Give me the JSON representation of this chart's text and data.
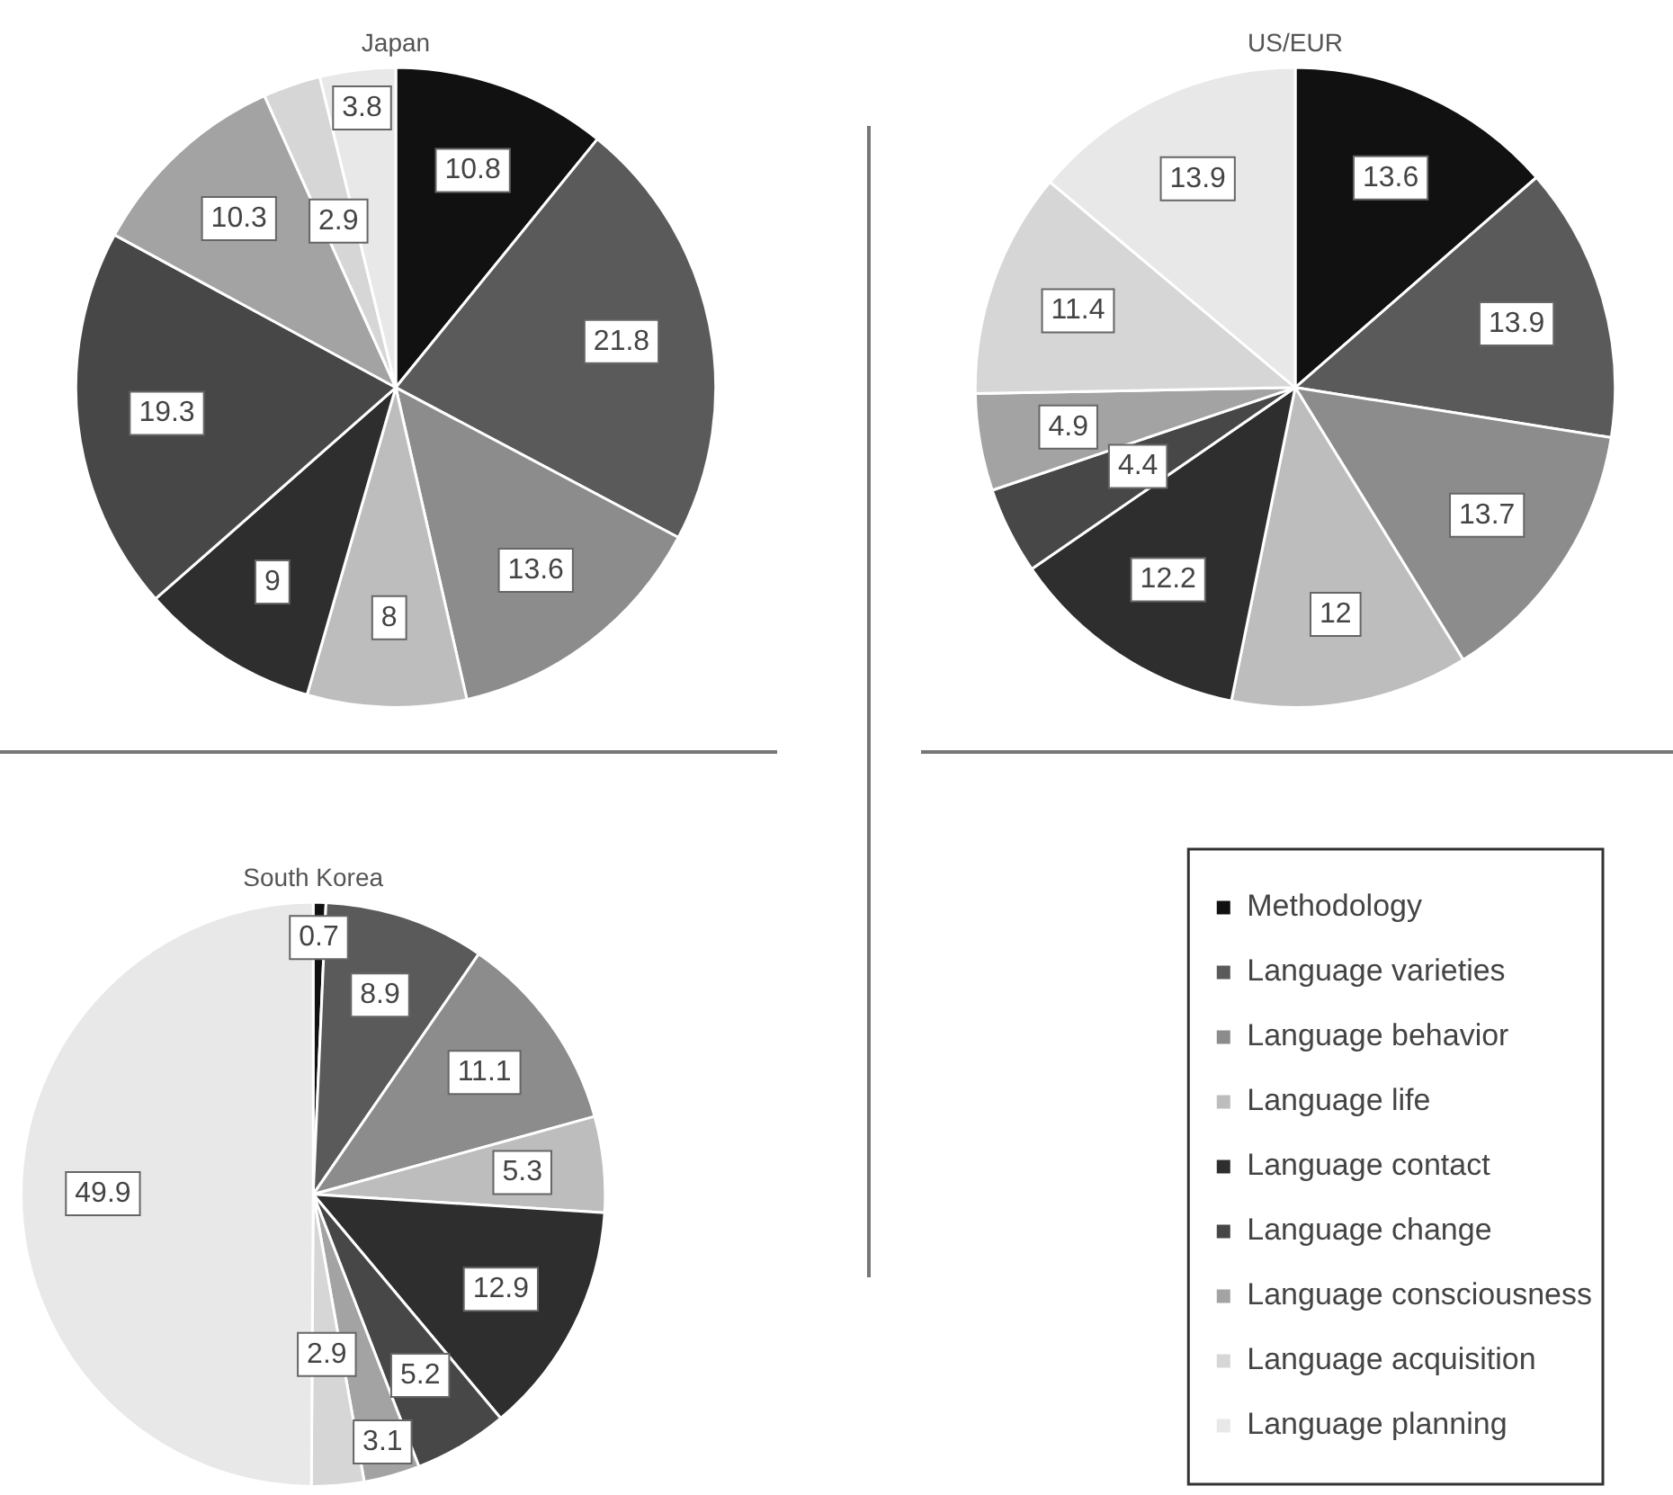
{
  "chart_data": [
    {
      "type": "pie",
      "title": "Japan",
      "categories": [
        null,
        null,
        null,
        null,
        null,
        null,
        null,
        null,
        null
      ],
      "values": [
        10.8,
        21.8,
        13.6,
        8,
        9,
        19.3,
        10.3,
        2.9,
        3.8
      ],
      "colors": [
        "#111111",
        "#5a5a5a",
        "#8c8c8c",
        "#bdbdbd",
        "#2e2e2e",
        "#474747",
        "#a3a3a3",
        "#d6d6d6",
        "#e8e8e8"
      ],
      "data_labels": true,
      "legend": false
    },
    {
      "type": "pie",
      "title": "US/EUR",
      "categories": [
        null,
        null,
        null,
        null,
        null,
        null,
        null,
        null,
        null
      ],
      "values": [
        13.6,
        13.9,
        13.7,
        12,
        12.2,
        4.4,
        4.9,
        11.4,
        13.9
      ],
      "colors": [
        "#111111",
        "#5a5a5a",
        "#8c8c8c",
        "#bdbdbd",
        "#2e2e2e",
        "#474747",
        "#a3a3a3",
        "#d6d6d6",
        "#e8e8e8"
      ],
      "data_labels": true,
      "legend": false
    },
    {
      "type": "pie",
      "title": "South Korea",
      "categories": [
        "Methodology",
        "Language varieties",
        "Language behavior",
        "Language life",
        "Language contact",
        "Language change",
        "Language consciousness",
        "Language acquisition",
        "Language planning"
      ],
      "values": [
        0.7,
        8.9,
        11.1,
        5.3,
        12.9,
        5.2,
        3.1,
        2.9,
        49.9
      ],
      "colors": [
        "#111111",
        "#5a5a5a",
        "#8c8c8c",
        "#bdbdbd",
        "#2e2e2e",
        "#474747",
        "#a3a3a3",
        "#d6d6d6",
        "#e8e8e8"
      ],
      "data_labels": true,
      "legend": "right"
    }
  ]
}
